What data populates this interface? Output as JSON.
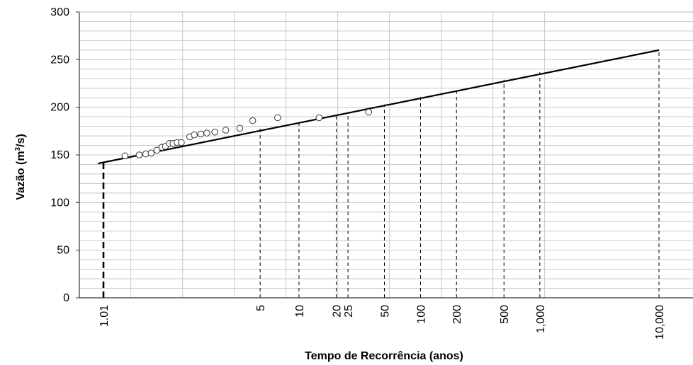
{
  "chart_data": {
    "type": "scatter",
    "title": "",
    "xlabel": "Tempo de Recorrência (anos)",
    "ylabel": "Vazão (m³/s)",
    "ylabel_parts": {
      "prefix": "Vazão (m",
      "sup": "3",
      "suffix": "/s)"
    },
    "ylim": [
      0,
      300
    ],
    "y_ticks": [
      0,
      50,
      100,
      150,
      200,
      250,
      300
    ],
    "y_tick_labels": [
      "0",
      "50",
      "100",
      "150",
      "200",
      "250",
      "300"
    ],
    "x_scale": "gumbel (reduced variate), return period in years",
    "x_ticks": [
      1.01,
      5,
      10,
      20,
      25,
      50,
      100,
      200,
      500,
      1000,
      10000
    ],
    "x_tick_labels": [
      "1.01",
      "5",
      "10",
      "20",
      "25",
      "50",
      "100",
      "200",
      "500",
      "1,000",
      "10,000"
    ],
    "grid": true,
    "series": [
      {
        "type": "scatter",
        "marker": "open circle",
        "points": [
          {
            "x": 1.05,
            "y": 149
          },
          {
            "x": 1.11,
            "y": 150
          },
          {
            "x": 1.15,
            "y": 151
          },
          {
            "x": 1.19,
            "y": 152
          },
          {
            "x": 1.24,
            "y": 155
          },
          {
            "x": 1.29,
            "y": 158
          },
          {
            "x": 1.33,
            "y": 159
          },
          {
            "x": 1.38,
            "y": 162
          },
          {
            "x": 1.43,
            "y": 162
          },
          {
            "x": 1.49,
            "y": 163
          },
          {
            "x": 1.56,
            "y": 163
          },
          {
            "x": 1.72,
            "y": 169
          },
          {
            "x": 1.82,
            "y": 171
          },
          {
            "x": 1.98,
            "y": 172
          },
          {
            "x": 2.15,
            "y": 173
          },
          {
            "x": 2.41,
            "y": 174
          },
          {
            "x": 2.84,
            "y": 176
          },
          {
            "x": 3.55,
            "y": 178
          },
          {
            "x": 4.4,
            "y": 186
          },
          {
            "x": 6.8,
            "y": 189
          },
          {
            "x": 14.5,
            "y": 189
          },
          {
            "x": 37,
            "y": 195
          }
        ]
      },
      {
        "type": "line",
        "style": "solid",
        "points": [
          {
            "x": 1.006,
            "y": 141
          },
          {
            "x": 10000,
            "y": 260
          }
        ]
      }
    ],
    "reference_lines": [
      {
        "x": 1.01,
        "y": 145,
        "style": "bold-dashed"
      },
      {
        "x": 5,
        "y": 178
      },
      {
        "x": 10,
        "y": 186
      },
      {
        "x": 20,
        "y": 193
      },
      {
        "x": 25,
        "y": 195
      },
      {
        "x": 50,
        "y": 203
      },
      {
        "x": 100,
        "y": 211
      },
      {
        "x": 200,
        "y": 219
      },
      {
        "x": 500,
        "y": 229
      },
      {
        "x": 1000,
        "y": 237
      },
      {
        "x": 10000,
        "y": 260
      }
    ]
  }
}
